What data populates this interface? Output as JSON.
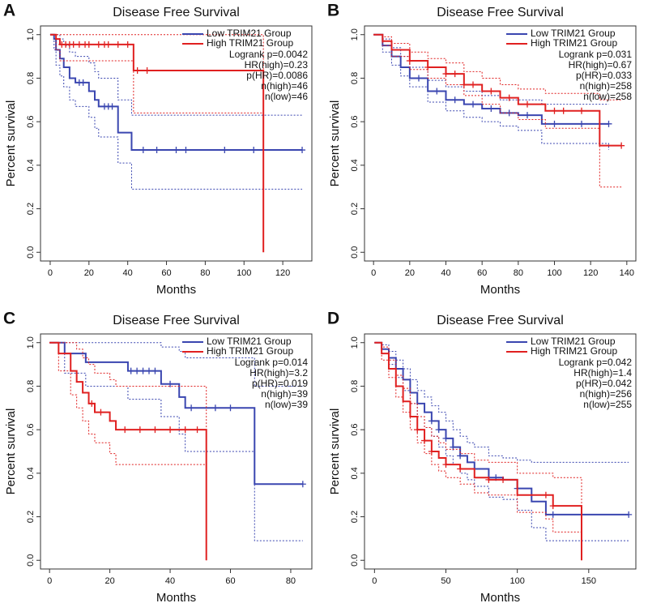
{
  "chart_data": [
    {
      "type": "line",
      "step": true,
      "label": "A",
      "title": "Disease Free Survival",
      "xlabel": "Months",
      "ylabel": "Percent survival",
      "xlim": [
        -5,
        135
      ],
      "ylim": [
        -0.04,
        1.04
      ],
      "xticks": [
        0,
        20,
        40,
        60,
        80,
        100,
        120
      ],
      "yticks": [
        {
          "value": 0,
          "label": "0.0"
        },
        0.2,
        0.4,
        0.6,
        0.8,
        {
          "value": 1,
          "label": "1.0"
        }
      ],
      "legend": "top-right",
      "annotations": [
        "Logrank p=0.0042",
        "HR(high)=0.23",
        "p(HR)=0.0086",
        "n(high)=46",
        "n(low)=46"
      ],
      "series": [
        {
          "name": "Low TRIM21 Group",
          "color": "#3a46b0",
          "x": [
            0,
            2,
            3,
            5,
            7,
            10,
            13,
            20,
            23,
            25,
            35,
            42,
            130
          ],
          "values": [
            1,
            0.98,
            0.93,
            0.89,
            0.85,
            0.8,
            0.78,
            0.74,
            0.7,
            0.67,
            0.55,
            0.47,
            0.47
          ],
          "lower": [
            1,
            0.93,
            0.86,
            0.81,
            0.76,
            0.7,
            0.67,
            0.62,
            0.57,
            0.53,
            0.41,
            0.29,
            0.29
          ],
          "upper": [
            1,
            1,
            1,
            0.98,
            0.95,
            0.92,
            0.9,
            0.87,
            0.83,
            0.8,
            0.7,
            0.63,
            0.63
          ],
          "censored": [
            15,
            17,
            28,
            30,
            32,
            48,
            55,
            65,
            70,
            90,
            105,
            130
          ]
        },
        {
          "name": "High TRIM21 Group",
          "color": "#e02020",
          "x": [
            0,
            3,
            5,
            43,
            110
          ],
          "values": [
            1,
            0.98,
            0.955,
            0.835,
            0
          ],
          "lower": [
            1,
            0.93,
            0.88,
            0.64,
            0
          ],
          "upper": [
            1,
            1,
            1,
            1,
            0
          ],
          "censored": [
            6,
            8,
            10,
            12,
            15,
            18,
            20,
            25,
            28,
            30,
            35,
            40,
            45,
            50
          ]
        }
      ]
    },
    {
      "type": "line",
      "step": true,
      "label": "B",
      "title": "Disease Free Survival",
      "xlabel": "Months",
      "ylabel": "Percent survival",
      "xlim": [
        -5,
        145
      ],
      "ylim": [
        -0.04,
        1.04
      ],
      "xticks": [
        0,
        20,
        40,
        60,
        80,
        100,
        120,
        140
      ],
      "yticks": [
        {
          "value": 0,
          "label": "0.0"
        },
        0.2,
        0.4,
        0.6,
        0.8,
        {
          "value": 1,
          "label": "1.0"
        }
      ],
      "legend": "top-right",
      "annotations": [
        "Logrank p=0.031",
        "HR(high)=0.67",
        "p(HR)=0.033",
        "n(high)=258",
        "n(low)=258"
      ],
      "series": [
        {
          "name": "Low TRIM21 Group",
          "color": "#3a46b0",
          "x": [
            0,
            5,
            10,
            15,
            20,
            30,
            40,
            50,
            60,
            70,
            80,
            93,
            130
          ],
          "values": [
            1,
            0.95,
            0.9,
            0.85,
            0.8,
            0.74,
            0.7,
            0.68,
            0.66,
            0.64,
            0.63,
            0.59,
            0.59
          ],
          "lower": [
            1,
            0.92,
            0.86,
            0.81,
            0.76,
            0.69,
            0.65,
            0.62,
            0.6,
            0.58,
            0.56,
            0.5,
            0.47
          ],
          "upper": [
            1,
            0.98,
            0.94,
            0.9,
            0.85,
            0.79,
            0.76,
            0.74,
            0.72,
            0.7,
            0.7,
            0.68,
            0.68
          ],
          "censored": [
            25,
            35,
            45,
            55,
            65,
            75,
            85,
            100,
            115,
            130
          ]
        },
        {
          "name": "High TRIM21 Group",
          "color": "#e02020",
          "x": [
            0,
            5,
            10,
            20,
            30,
            40,
            50,
            60,
            70,
            80,
            95,
            125,
            137
          ],
          "values": [
            1,
            0.97,
            0.93,
            0.88,
            0.85,
            0.82,
            0.77,
            0.74,
            0.71,
            0.68,
            0.65,
            0.49,
            0.49
          ],
          "lower": [
            1,
            0.95,
            0.9,
            0.84,
            0.8,
            0.77,
            0.72,
            0.68,
            0.64,
            0.61,
            0.57,
            0.3,
            0.3
          ],
          "upper": [
            1,
            0.99,
            0.96,
            0.92,
            0.89,
            0.87,
            0.83,
            0.8,
            0.77,
            0.75,
            0.73,
            0.7,
            0.7
          ],
          "censored": [
            20,
            30,
            40,
            45,
            50,
            55,
            65,
            75,
            85,
            100,
            105,
            115,
            137
          ]
        }
      ]
    },
    {
      "type": "line",
      "step": true,
      "label": "C",
      "title": "Disease Free Survival",
      "xlabel": "Months",
      "ylabel": "Percent survival",
      "xlim": [
        -3,
        87
      ],
      "ylim": [
        -0.04,
        1.04
      ],
      "xticks": [
        0,
        20,
        40,
        60,
        80
      ],
      "yticks": [
        {
          "value": 0,
          "label": "0.0"
        },
        0.2,
        0.4,
        0.6,
        0.8,
        {
          "value": 1,
          "label": "1.0"
        }
      ],
      "legend": "top-right",
      "annotations": [
        "Logrank p=0.014",
        "HR(high)=3.2",
        "p(HR)=0.019",
        "n(high)=39",
        "n(low)=39"
      ],
      "series": [
        {
          "name": "Low TRIM21 Group",
          "color": "#3a46b0",
          "x": [
            0,
            5,
            12,
            26,
            37,
            43,
            45,
            68,
            84
          ],
          "values": [
            1,
            0.95,
            0.91,
            0.87,
            0.81,
            0.75,
            0.7,
            0.35,
            0.35
          ],
          "lower": [
            1,
            0.86,
            0.8,
            0.74,
            0.66,
            0.58,
            0.5,
            0.09,
            0.09
          ],
          "upper": [
            1,
            1,
            1,
            1,
            0.98,
            0.96,
            0.93,
            0.8,
            0.8
          ],
          "censored": [
            27,
            29,
            31,
            33,
            35,
            40,
            47,
            55,
            60,
            84
          ]
        },
        {
          "name": "High TRIM21 Group",
          "color": "#e02020",
          "x": [
            0,
            3,
            7,
            9,
            11,
            13,
            15,
            20,
            22,
            52
          ],
          "values": [
            1,
            0.95,
            0.87,
            0.82,
            0.77,
            0.72,
            0.68,
            0.64,
            0.6,
            0
          ],
          "lower": [
            1,
            0.87,
            0.76,
            0.7,
            0.64,
            0.58,
            0.54,
            0.49,
            0.44,
            0
          ],
          "upper": [
            1,
            1,
            1,
            0.97,
            0.93,
            0.9,
            0.86,
            0.83,
            0.8,
            0
          ],
          "censored": [
            14,
            17,
            25,
            30,
            35,
            40,
            45,
            49
          ]
        }
      ]
    },
    {
      "type": "line",
      "step": true,
      "label": "D",
      "title": "Disease Free Survival",
      "xlabel": "Months",
      "ylabel": "Percent survival",
      "xlim": [
        -7,
        183
      ],
      "ylim": [
        -0.04,
        1.04
      ],
      "xticks": [
        0,
        50,
        100,
        150
      ],
      "yticks": [
        {
          "value": 0,
          "label": "0.0"
        },
        0.2,
        0.4,
        0.6,
        0.8,
        {
          "value": 1,
          "label": "1.0"
        }
      ],
      "legend": "top-right",
      "annotations": [
        "Logrank p=0.042",
        "HR(high)=1.4",
        "p(HR)=0.042",
        "n(high)=256",
        "n(low)=255"
      ],
      "series": [
        {
          "name": "Low TRIM21 Group",
          "color": "#3a46b0",
          "x": [
            0,
            5,
            10,
            15,
            20,
            25,
            30,
            35,
            40,
            45,
            50,
            55,
            60,
            65,
            70,
            80,
            90,
            100,
            110,
            120,
            178
          ],
          "values": [
            1,
            0.97,
            0.93,
            0.88,
            0.83,
            0.77,
            0.72,
            0.68,
            0.64,
            0.6,
            0.56,
            0.52,
            0.48,
            0.45,
            0.42,
            0.38,
            0.37,
            0.33,
            0.27,
            0.21,
            0.21
          ],
          "lower": [
            1,
            0.95,
            0.9,
            0.84,
            0.78,
            0.72,
            0.66,
            0.61,
            0.57,
            0.52,
            0.48,
            0.44,
            0.4,
            0.37,
            0.34,
            0.29,
            0.28,
            0.23,
            0.15,
            0.09,
            0.09
          ],
          "upper": [
            1,
            0.99,
            0.96,
            0.92,
            0.88,
            0.83,
            0.78,
            0.75,
            0.71,
            0.68,
            0.64,
            0.6,
            0.57,
            0.54,
            0.52,
            0.48,
            0.47,
            0.46,
            0.45,
            0.45,
            0.45
          ],
          "censored": [
            40,
            45,
            50,
            55,
            60,
            70,
            85,
            100,
            125,
            178
          ]
        },
        {
          "name": "High TRIM21 Group",
          "color": "#e02020",
          "x": [
            0,
            5,
            10,
            15,
            20,
            25,
            30,
            35,
            40,
            45,
            50,
            60,
            70,
            80,
            100,
            120,
            125,
            145
          ],
          "values": [
            1,
            0.95,
            0.88,
            0.8,
            0.73,
            0.66,
            0.6,
            0.55,
            0.5,
            0.47,
            0.44,
            0.42,
            0.38,
            0.37,
            0.3,
            0.3,
            0.25,
            0
          ],
          "lower": [
            1,
            0.92,
            0.84,
            0.75,
            0.68,
            0.6,
            0.54,
            0.49,
            0.44,
            0.41,
            0.38,
            0.35,
            0.31,
            0.3,
            0.22,
            0.19,
            0.13,
            0
          ],
          "upper": [
            1,
            0.98,
            0.92,
            0.85,
            0.79,
            0.72,
            0.66,
            0.61,
            0.57,
            0.54,
            0.51,
            0.49,
            0.46,
            0.45,
            0.4,
            0.4,
            0.38,
            0
          ],
          "censored": [
            30,
            35,
            40,
            50,
            60,
            80,
            90,
            120,
            125
          ]
        }
      ]
    }
  ]
}
